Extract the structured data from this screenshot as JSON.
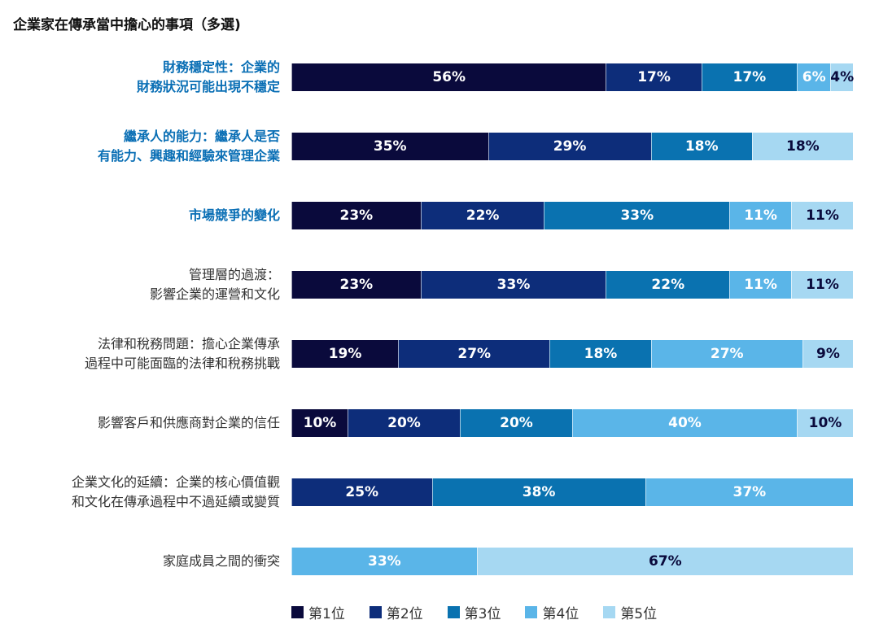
{
  "chart_data": {
    "type": "bar",
    "orientation": "horizontal-stacked-100",
    "title": "企業家在傳承當中擔心的事項（多選)",
    "series_names": [
      "第1位",
      "第2位",
      "第3位",
      "第4位",
      "第5位"
    ],
    "colors": [
      "#0a0a3c",
      "#0d2d7a",
      "#0a72b0",
      "#5ab5e8",
      "#a6d8f2"
    ],
    "categories": [
      {
        "label": [
          "財務穩定性：企業的",
          "財務狀況可能出現不穩定"
        ],
        "highlight": true,
        "values": [
          56,
          17,
          17,
          6,
          4
        ]
      },
      {
        "label": [
          "繼承人的能力：繼承人是否",
          "有能力、興趣和經驗來管理企業"
        ],
        "highlight": true,
        "values": [
          35,
          29,
          18,
          0,
          18
        ]
      },
      {
        "label": [
          "市場競爭的變化"
        ],
        "highlight": true,
        "values": [
          23,
          22,
          33,
          11,
          11
        ]
      },
      {
        "label": [
          "管理層的過渡：",
          "影響企業的運營和文化"
        ],
        "highlight": false,
        "values": [
          23,
          33,
          22,
          11,
          11
        ]
      },
      {
        "label": [
          "法律和稅務問題：擔心企業傳承",
          "過程中可能面臨的法律和稅務挑戰"
        ],
        "highlight": false,
        "values": [
          19,
          27,
          18,
          27,
          9
        ]
      },
      {
        "label": [
          "影響客戶和供應商對企業的信任"
        ],
        "highlight": false,
        "values": [
          10,
          20,
          20,
          40,
          10
        ]
      },
      {
        "label": [
          "企業文化的延續：企業的核心價值觀",
          "和文化在傳承過程中不過延續或變質"
        ],
        "highlight": false,
        "values": [
          0,
          25,
          38,
          37,
          0
        ]
      },
      {
        "label": [
          "家庭成員之間的衝突"
        ],
        "highlight": false,
        "values": [
          0,
          0,
          0,
          33,
          67
        ]
      }
    ],
    "unit": "%",
    "legend_position": "bottom"
  }
}
